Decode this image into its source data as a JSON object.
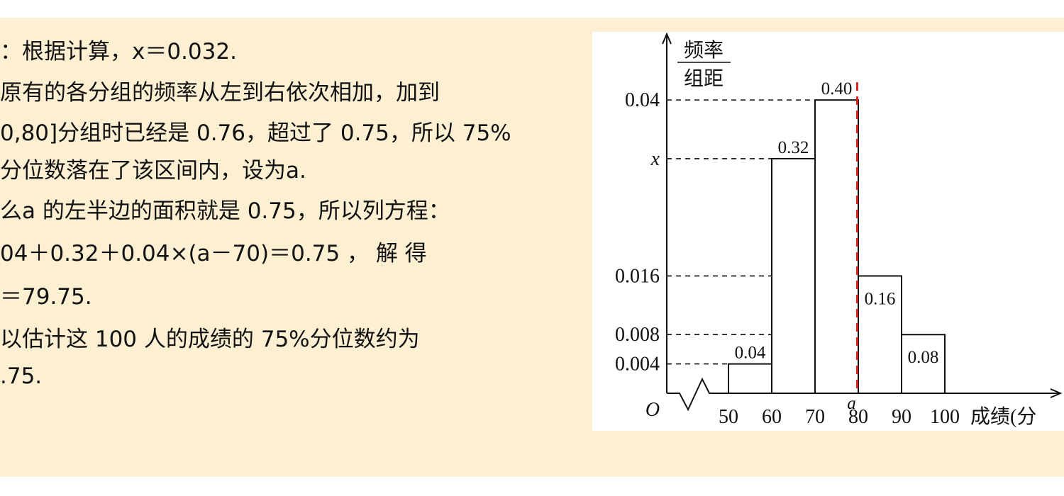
{
  "text_lines": [
    "：根据计算，x＝0.032.",
    "原有的各分组的频率从左到右依次相加，加到",
    "0,80]分组时已经是 0.76，超过了 0.75，所以 75%",
    "分位数落在了该区间内，设为a.",
    "么a 的左半边的面积就是 0.75，所以列方程：",
    "04＋0.32＋0.04×(a－70)＝0.75 ， 解 得",
    "＝79.75.",
    "以估计这 100 人的成绩的 75%分位数约为",
    ".75."
  ],
  "figure": {
    "type": "histogram",
    "y_label_numerator": "频率",
    "y_label_denominator": "组距",
    "origin_label": "O",
    "x_label": "成绩(分",
    "bins": [
      50,
      60,
      70,
      80,
      90,
      100
    ],
    "values": [
      0.004,
      0.032,
      0.04,
      0.016,
      0.008
    ],
    "frequency_labels": [
      "0.04",
      "0.32",
      "0.40",
      "0.16",
      "0.08"
    ],
    "ylim": [
      0,
      0.049
    ],
    "yticks": [
      0.004,
      0.008,
      0.016,
      {
        "value": 0.032,
        "label": "x"
      },
      0.04
    ],
    "marker": {
      "label": "a",
      "value": 79.75,
      "color": "#e02020"
    },
    "color": "#ffffff"
  }
}
